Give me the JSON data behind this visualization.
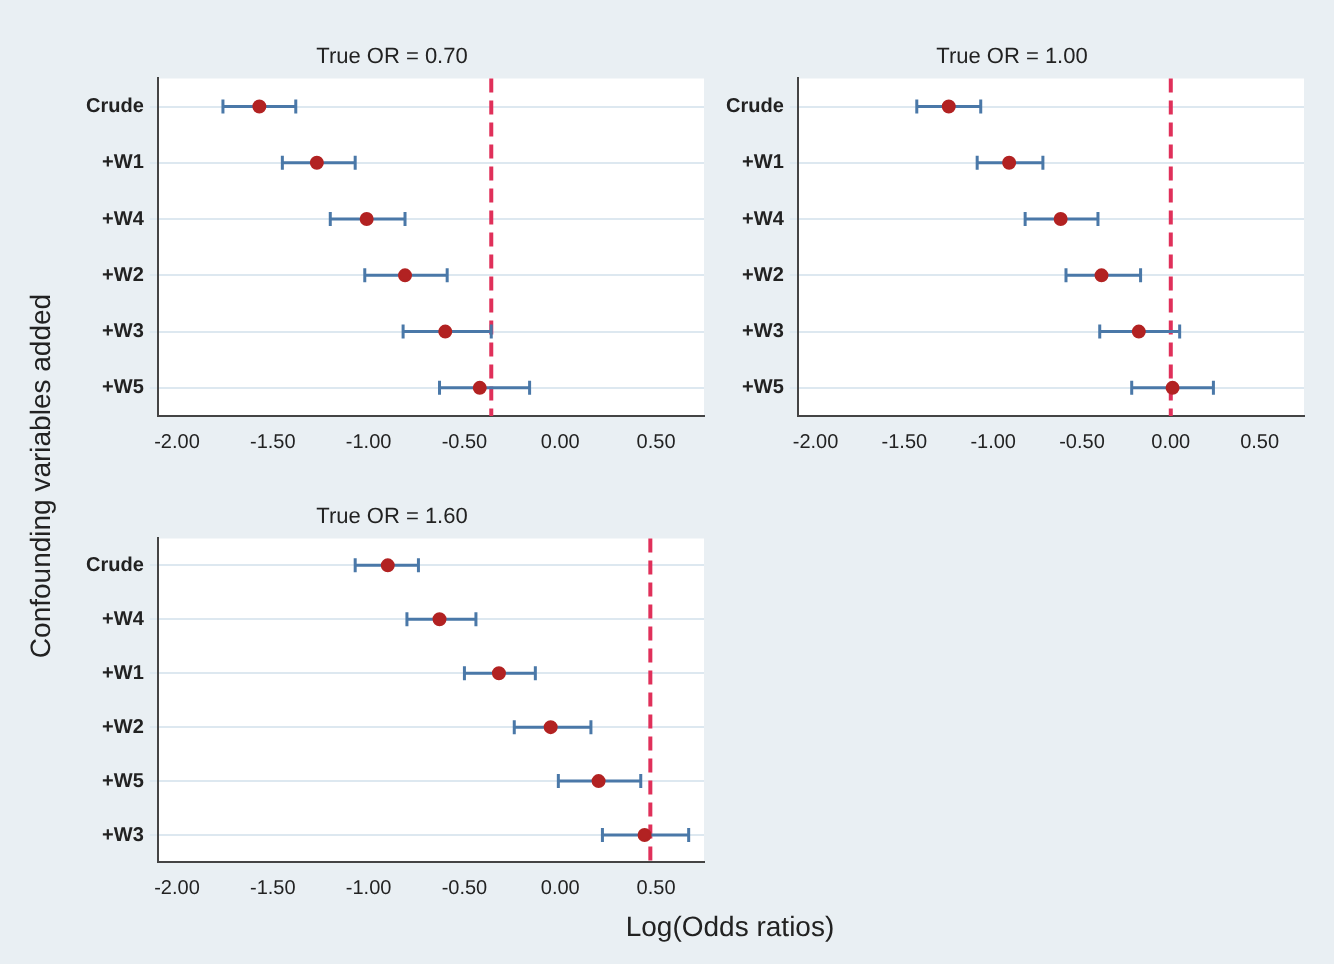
{
  "chart_data": [
    {
      "type": "scatter",
      "orientation": "horizontal",
      "title": "True OR = 0.70",
      "ylabel": "Confounding variables added",
      "categories": [
        "Crude",
        "+W1",
        "+W4",
        "+W2",
        "+W3",
        "+W5"
      ],
      "series": [
        {
          "color": "#b22222",
          "values": [
            -1.57,
            -1.27,
            -1.01,
            -0.81,
            -0.6,
            -0.42
          ],
          "errors": [
            [
              -1.76,
              -1.38
            ],
            [
              -1.45,
              -1.07
            ],
            [
              -1.2,
              -0.81
            ],
            [
              -1.02,
              -0.59
            ],
            [
              -0.82,
              -0.36
            ],
            [
              -0.63,
              -0.16
            ]
          ]
        }
      ],
      "xlim": [
        -2.1,
        0.75
      ],
      "xticks": [
        {
          "value": -2,
          "label": "-2.00"
        },
        {
          "value": -1.5,
          "label": "-1.50"
        },
        {
          "value": -1,
          "label": "-1.00"
        },
        {
          "value": -0.5,
          "label": "-0.50"
        },
        {
          "value": 0,
          "label": "0.00"
        },
        {
          "value": 0.5,
          "label": "0.50"
        }
      ],
      "ref_lines": [
        {
          "axis": "x",
          "value": -0.36,
          "color": "#e0305a",
          "line_style": "dashed"
        }
      ],
      "grid": "y",
      "marker": "circle",
      "legend": false
    },
    {
      "type": "scatter",
      "orientation": "horizontal",
      "title": "True OR = 1.00",
      "categories": [
        "Crude",
        "+W1",
        "+W4",
        "+W2",
        "+W3",
        "+W5"
      ],
      "series": [
        {
          "color": "#b22222",
          "values": [
            -1.25,
            -0.91,
            -0.62,
            -0.39,
            -0.18,
            0.01
          ],
          "errors": [
            [
              -1.43,
              -1.07
            ],
            [
              -1.09,
              -0.72
            ],
            [
              -0.82,
              -0.41
            ],
            [
              -0.59,
              -0.17
            ],
            [
              -0.4,
              0.05
            ],
            [
              -0.22,
              0.24
            ]
          ]
        }
      ],
      "xlim": [
        -2.1,
        0.75
      ],
      "xticks": [
        {
          "value": -2,
          "label": "-2.00"
        },
        {
          "value": -1.5,
          "label": "-1.50"
        },
        {
          "value": -1,
          "label": "-1.00"
        },
        {
          "value": -0.5,
          "label": "-0.50"
        },
        {
          "value": 0,
          "label": "0.00"
        },
        {
          "value": 0.5,
          "label": "0.50"
        }
      ],
      "ref_lines": [
        {
          "axis": "x",
          "value": 0,
          "color": "#e0305a",
          "line_style": "dashed"
        }
      ],
      "grid": "y",
      "marker": "circle",
      "legend": false
    },
    {
      "type": "scatter",
      "orientation": "horizontal",
      "title": "True OR = 1.60",
      "xlabel": "Log(Odds ratios)",
      "categories": [
        "Crude",
        "+W4",
        "+W1",
        "+W2",
        "+W5",
        "+W3"
      ],
      "series": [
        {
          "color": "#b22222",
          "values": [
            -0.9,
            -0.63,
            -0.32,
            -0.05,
            0.2,
            0.44
          ],
          "errors": [
            [
              -1.07,
              -0.74
            ],
            [
              -0.8,
              -0.44
            ],
            [
              -0.5,
              -0.13
            ],
            [
              -0.24,
              0.16
            ],
            [
              -0.01,
              0.42
            ],
            [
              0.22,
              0.67
            ]
          ]
        }
      ],
      "xlim": [
        -2.1,
        0.75
      ],
      "xticks": [
        {
          "value": -2,
          "label": "-2.00"
        },
        {
          "value": -1.5,
          "label": "-1.50"
        },
        {
          "value": -1,
          "label": "-1.00"
        },
        {
          "value": -0.5,
          "label": "-0.50"
        },
        {
          "value": 0,
          "label": "0.00"
        },
        {
          "value": 0.5,
          "label": "0.50"
        }
      ],
      "ref_lines": [
        {
          "axis": "x",
          "value": 0.47,
          "color": "#e0305a",
          "line_style": "dashed"
        }
      ],
      "grid": "y",
      "marker": "circle",
      "legend": false
    }
  ]
}
